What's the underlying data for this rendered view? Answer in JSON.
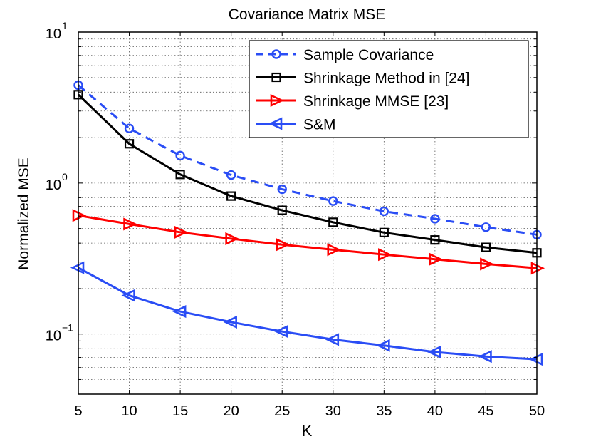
{
  "chart_data": {
    "type": "line",
    "title": "Covariance Matrix MSE",
    "xlabel": "K",
    "ylabel": "Normalized MSE",
    "x": [
      5,
      10,
      15,
      20,
      25,
      30,
      35,
      40,
      45,
      50
    ],
    "xlim": [
      5,
      50
    ],
    "ylim": [
      0.04,
      10
    ],
    "yscale": "log",
    "x_ticks": [
      "5",
      "10",
      "15",
      "20",
      "25",
      "30",
      "35",
      "40",
      "45",
      "50"
    ],
    "y_ticks": [
      {
        "value": 0.1,
        "base": "10",
        "exp": "−1"
      },
      {
        "value": 1,
        "base": "10",
        "exp": "0"
      },
      {
        "value": 10,
        "base": "10",
        "exp": "1"
      }
    ],
    "grid": true,
    "legend_position": "top-right",
    "series": [
      {
        "name": "Sample Covariance",
        "color": "#2a4df5",
        "dash": "dashed",
        "marker": "circle",
        "values": [
          4.45,
          2.3,
          1.52,
          1.13,
          0.91,
          0.76,
          0.65,
          0.58,
          0.51,
          0.455
        ]
      },
      {
        "name": "Shrinkage Method in [24]",
        "color": "#000000",
        "dash": "solid",
        "marker": "square",
        "values": [
          3.85,
          1.82,
          1.14,
          0.82,
          0.66,
          0.55,
          0.47,
          0.42,
          0.375,
          0.345
        ]
      },
      {
        "name": "Shrinkage MMSE [23]",
        "color": "#ff0000",
        "dash": "solid",
        "marker": "triangle-right",
        "values": [
          0.61,
          0.535,
          0.472,
          0.428,
          0.391,
          0.362,
          0.336,
          0.313,
          0.291,
          0.273
        ]
      },
      {
        "name": "S&M",
        "color": "#2a4df5",
        "dash": "solid",
        "marker": "triangle-left",
        "values": [
          0.275,
          0.18,
          0.141,
          0.12,
          0.104,
          0.092,
          0.084,
          0.076,
          0.071,
          0.068
        ]
      }
    ]
  }
}
